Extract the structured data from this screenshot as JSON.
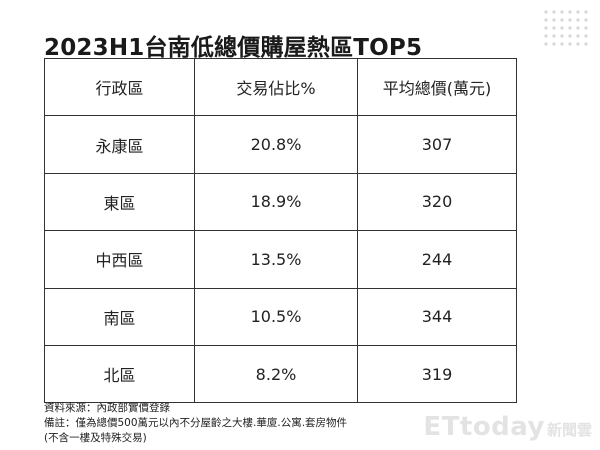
{
  "chart_data": {
    "type": "table",
    "title": "2023H1台南低總價購屋熱區TOP5",
    "columns": [
      "行政區",
      "交易佔比%",
      "平均總價(萬元)"
    ],
    "rows": [
      [
        "永康區",
        "20.8%",
        "307"
      ],
      [
        "東區",
        "18.9%",
        "320"
      ],
      [
        "中西區",
        "13.5%",
        "244"
      ],
      [
        "南區",
        "10.5%",
        "344"
      ],
      [
        "北區",
        "8.2%",
        "319"
      ]
    ]
  },
  "footer": {
    "source": "資料來源：內政部實價登錄",
    "note": "備註：僅為總價500萬元以內不分屋齡之大樓.華廈.公寓.套房物件",
    "note2": "(不含一樓及特殊交易)"
  },
  "watermark": {
    "logo_text": "ETtoday",
    "logo_suffix": "新聞雲"
  }
}
